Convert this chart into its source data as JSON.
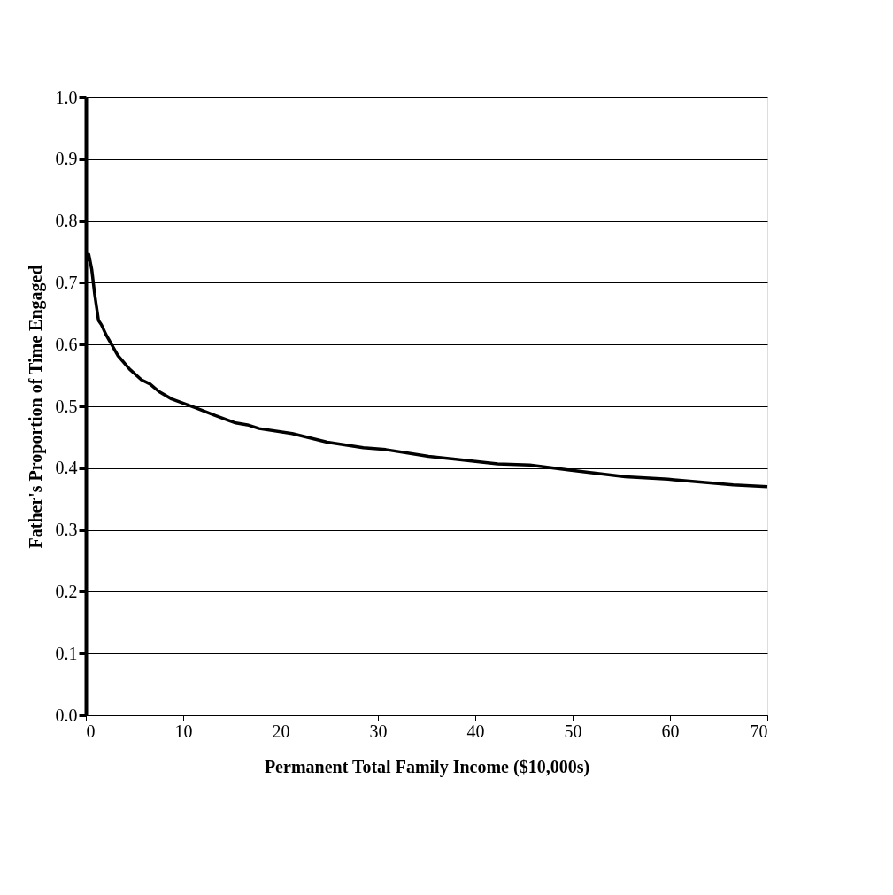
{
  "chart_data": {
    "type": "line",
    "xlabel": "Permanent Total Family Income ($10,000s)",
    "ylabel": "Father's Proportion of Time Engaged",
    "xlim": [
      0,
      70
    ],
    "xticks": [
      0,
      10,
      20,
      30,
      40,
      50,
      60,
      70
    ],
    "ylim": [
      0,
      1.0
    ],
    "yticks": [
      {
        "value": 0,
        "label": "0.0"
      },
      0.1,
      0.2,
      0.3,
      0.4,
      0.5,
      0.6,
      0.7,
      0.8,
      0.9,
      {
        "value": 1.0,
        "label": "1.0"
      }
    ],
    "grid": "y",
    "line_style": "solid",
    "marker": "none",
    "series": [
      {
        "color": "#000000",
        "x": [
          0.1,
          0.3,
          0.6,
          0.9,
          1.3,
          1.6,
          2.1,
          3.3,
          4.5,
          5.7,
          6.6,
          7.5,
          8.8,
          11.2,
          13.3,
          15.4,
          16.6,
          17.8,
          21.2,
          24.8,
          28.5,
          30.8,
          35.2,
          42.3,
          45.6,
          49.7,
          55.4,
          59.8,
          66.5,
          70
        ],
        "values": [
          0.735,
          0.746,
          0.722,
          0.682,
          0.639,
          0.632,
          0.615,
          0.582,
          0.56,
          0.543,
          0.536,
          0.524,
          0.512,
          0.498,
          0.485,
          0.473,
          0.47,
          0.464,
          0.456,
          0.442,
          0.433,
          0.43,
          0.419,
          0.407,
          0.405,
          0.397,
          0.386,
          0.382,
          0.373,
          0.37
        ]
      }
    ]
  }
}
